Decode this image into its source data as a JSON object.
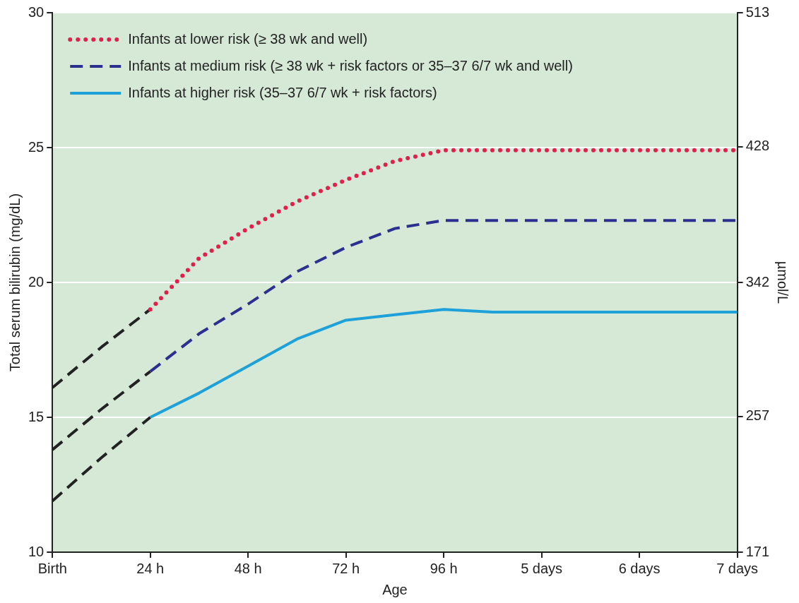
{
  "chart_data": {
    "type": "line",
    "xlabel": "Age",
    "ylabel": "Total serum bilirubin (mg/dL)",
    "y2label": "µmol/L",
    "categories": [
      "Birth",
      null,
      "24 h",
      null,
      "48 h",
      null,
      "72 h",
      null,
      "96 h",
      null,
      "5 days",
      null,
      "6 days",
      null,
      "7 days"
    ],
    "ylim": [
      10,
      30
    ],
    "yticks": [
      10,
      15,
      20,
      25,
      30
    ],
    "y2lim": [
      171,
      513
    ],
    "y2ticks": [
      171,
      257,
      342,
      428,
      513
    ],
    "grid": "y",
    "legend": "top left",
    "marker": "none",
    "series": [
      {
        "name": "Infants at lower risk (≥ 38 wk and well)",
        "color": "#e0204a",
        "line_style": "dotted",
        "values": [
          null,
          null,
          19,
          20.9,
          22,
          23,
          23.8,
          24.5,
          24.9,
          24.9,
          24.9,
          24.9,
          24.9,
          24.9,
          24.9
        ]
      },
      {
        "name": "Infants at medium risk (≥ 38 wk + risk factors or 35–37 6/7 wk and well)",
        "color": "#2b2f8f",
        "line_style": "dashed",
        "values": [
          null,
          null,
          16.7,
          18.1,
          19.2,
          20.4,
          21.3,
          22,
          22.3,
          22.3,
          22.3,
          22.3,
          22.3,
          22.3,
          22.3
        ]
      },
      {
        "name": "Infants at higher risk (35–37 6/7 wk + risk factors)",
        "color": "#1ea0d8",
        "line_style": "solid",
        "values": [
          null,
          null,
          15,
          15.9,
          16.9,
          17.9,
          18.6,
          18.8,
          19,
          18.9,
          18.9,
          18.9,
          18.9,
          18.9,
          18.9
        ]
      },
      {
        "color": "#222222",
        "line_style": "dashed",
        "values": [
          16.1,
          17.6,
          19,
          null,
          null,
          null,
          null,
          null,
          null,
          null,
          null,
          null,
          null,
          null,
          null
        ]
      },
      {
        "color": "#222222",
        "line_style": "dashed",
        "values": [
          13.8,
          15.3,
          16.7,
          null,
          null,
          null,
          null,
          null,
          null,
          null,
          null,
          null,
          null,
          null,
          null
        ]
      },
      {
        "color": "#222222",
        "line_style": "dashed",
        "values": [
          11.9,
          13.5,
          15,
          null,
          null,
          null,
          null,
          null,
          null,
          null,
          null,
          null,
          null,
          null,
          null
        ]
      }
    ]
  }
}
